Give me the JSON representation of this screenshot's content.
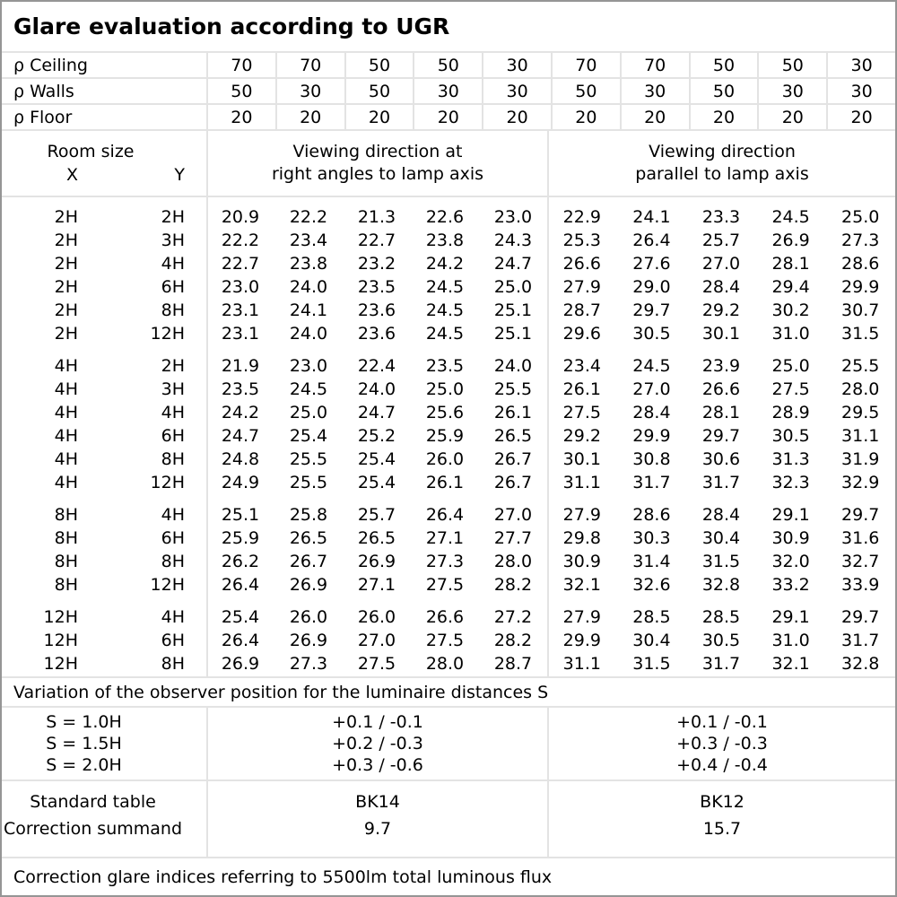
{
  "title": "Glare evaluation according to UGR",
  "meta_rows": [
    {
      "label": "ρ Ceiling",
      "values": [
        "70",
        "70",
        "50",
        "50",
        "30",
        "70",
        "70",
        "50",
        "50",
        "30"
      ]
    },
    {
      "label": "ρ Walls",
      "values": [
        "50",
        "30",
        "50",
        "30",
        "30",
        "50",
        "30",
        "50",
        "30",
        "30"
      ]
    },
    {
      "label": "ρ Floor",
      "values": [
        "20",
        "20",
        "20",
        "20",
        "20",
        "20",
        "20",
        "20",
        "20",
        "20"
      ]
    }
  ],
  "header": {
    "room_size": "Room size",
    "x": "X",
    "y": "Y",
    "viewing_left": {
      "line1": "Viewing direction at",
      "line2": "right angles to lamp axis"
    },
    "viewing_right": {
      "line1": "Viewing direction",
      "line2": "parallel to lamp axis"
    }
  },
  "blocks": [
    {
      "rows": [
        {
          "x": "2H",
          "y": "2H",
          "values": [
            "20.9",
            "22.2",
            "21.3",
            "22.6",
            "23.0",
            "22.9",
            "24.1",
            "23.3",
            "24.5",
            "25.0"
          ]
        },
        {
          "x": "2H",
          "y": "3H",
          "values": [
            "22.2",
            "23.4",
            "22.7",
            "23.8",
            "24.3",
            "25.3",
            "26.4",
            "25.7",
            "26.9",
            "27.3"
          ]
        },
        {
          "x": "2H",
          "y": "4H",
          "values": [
            "22.7",
            "23.8",
            "23.2",
            "24.2",
            "24.7",
            "26.6",
            "27.6",
            "27.0",
            "28.1",
            "28.6"
          ]
        },
        {
          "x": "2H",
          "y": "6H",
          "values": [
            "23.0",
            "24.0",
            "23.5",
            "24.5",
            "25.0",
            "27.9",
            "29.0",
            "28.4",
            "29.4",
            "29.9"
          ]
        },
        {
          "x": "2H",
          "y": "8H",
          "values": [
            "23.1",
            "24.1",
            "23.6",
            "24.5",
            "25.1",
            "28.7",
            "29.7",
            "29.2",
            "30.2",
            "30.7"
          ]
        },
        {
          "x": "2H",
          "y": "12H",
          "values": [
            "23.1",
            "24.0",
            "23.6",
            "24.5",
            "25.1",
            "29.6",
            "30.5",
            "30.1",
            "31.0",
            "31.5"
          ]
        }
      ]
    },
    {
      "rows": [
        {
          "x": "4H",
          "y": "2H",
          "values": [
            "21.9",
            "23.0",
            "22.4",
            "23.5",
            "24.0",
            "23.4",
            "24.5",
            "23.9",
            "25.0",
            "25.5"
          ]
        },
        {
          "x": "4H",
          "y": "3H",
          "values": [
            "23.5",
            "24.5",
            "24.0",
            "25.0",
            "25.5",
            "26.1",
            "27.0",
            "26.6",
            "27.5",
            "28.0"
          ]
        },
        {
          "x": "4H",
          "y": "4H",
          "values": [
            "24.2",
            "25.0",
            "24.7",
            "25.6",
            "26.1",
            "27.5",
            "28.4",
            "28.1",
            "28.9",
            "29.5"
          ]
        },
        {
          "x": "4H",
          "y": "6H",
          "values": [
            "24.7",
            "25.4",
            "25.2",
            "25.9",
            "26.5",
            "29.2",
            "29.9",
            "29.7",
            "30.5",
            "31.1"
          ]
        },
        {
          "x": "4H",
          "y": "8H",
          "values": [
            "24.8",
            "25.5",
            "25.4",
            "26.0",
            "26.7",
            "30.1",
            "30.8",
            "30.6",
            "31.3",
            "31.9"
          ]
        },
        {
          "x": "4H",
          "y": "12H",
          "values": [
            "24.9",
            "25.5",
            "25.4",
            "26.1",
            "26.7",
            "31.1",
            "31.7",
            "31.7",
            "32.3",
            "32.9"
          ]
        }
      ]
    },
    {
      "rows": [
        {
          "x": "8H",
          "y": "4H",
          "values": [
            "25.1",
            "25.8",
            "25.7",
            "26.4",
            "27.0",
            "27.9",
            "28.6",
            "28.4",
            "29.1",
            "29.7"
          ]
        },
        {
          "x": "8H",
          "y": "6H",
          "values": [
            "25.9",
            "26.5",
            "26.5",
            "27.1",
            "27.7",
            "29.8",
            "30.3",
            "30.4",
            "30.9",
            "31.6"
          ]
        },
        {
          "x": "8H",
          "y": "8H",
          "values": [
            "26.2",
            "26.7",
            "26.9",
            "27.3",
            "28.0",
            "30.9",
            "31.4",
            "31.5",
            "32.0",
            "32.7"
          ]
        },
        {
          "x": "8H",
          "y": "12H",
          "values": [
            "26.4",
            "26.9",
            "27.1",
            "27.5",
            "28.2",
            "32.1",
            "32.6",
            "32.8",
            "33.2",
            "33.9"
          ]
        }
      ]
    },
    {
      "rows": [
        {
          "x": "12H",
          "y": "4H",
          "values": [
            "25.4",
            "26.0",
            "26.0",
            "26.6",
            "27.2",
            "27.9",
            "28.5",
            "28.5",
            "29.1",
            "29.7"
          ]
        },
        {
          "x": "12H",
          "y": "6H",
          "values": [
            "26.4",
            "26.9",
            "27.0",
            "27.5",
            "28.2",
            "29.9",
            "30.4",
            "30.5",
            "31.0",
            "31.7"
          ]
        },
        {
          "x": "12H",
          "y": "8H",
          "values": [
            "26.9",
            "27.3",
            "27.5",
            "28.0",
            "28.7",
            "31.1",
            "31.5",
            "31.7",
            "32.1",
            "32.8"
          ]
        }
      ]
    }
  ],
  "variation_note": "Variation of the observer position for the luminaire distances S",
  "s_rows": [
    {
      "label": "S = 1.0H",
      "left": "+0.1 / -0.1",
      "right": "+0.1 / -0.1"
    },
    {
      "label": "S = 1.5H",
      "left": "+0.2 / -0.3",
      "right": "+0.3 / -0.3"
    },
    {
      "label": "S = 2.0H",
      "left": "+0.3 / -0.6",
      "right": "+0.4 / -0.4"
    }
  ],
  "standard": {
    "row1_label": "Standard table",
    "row2_label": "Correction summand",
    "left_row1": "BK14",
    "left_row2": "9.7",
    "right_row1": "BK12",
    "right_row2": "15.7"
  },
  "footer": "Correction glare indices referring to 5500lm total luminous flux",
  "colors": {
    "grid": "#e3e3e3",
    "outer_border": "#959595",
    "text": "#000000",
    "background": "#ffffff"
  }
}
